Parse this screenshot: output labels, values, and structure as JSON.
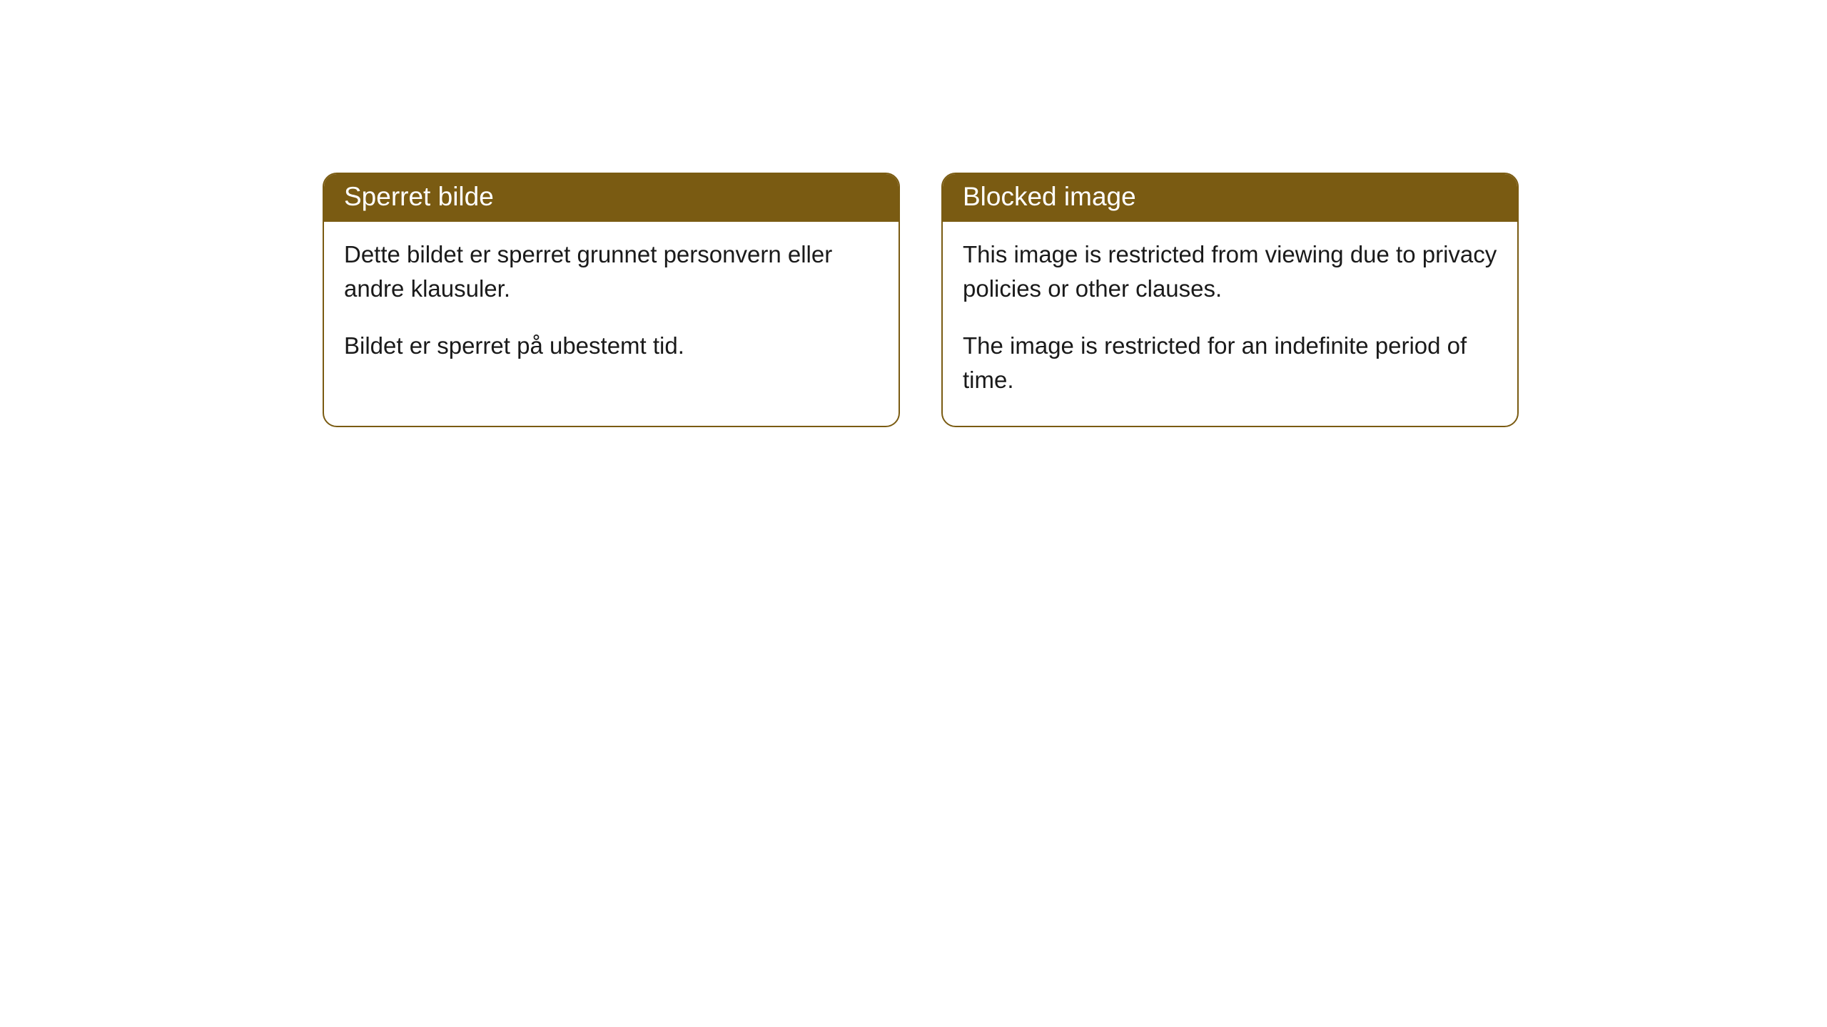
{
  "cards": [
    {
      "title": "Sperret bilde",
      "paragraph1": "Dette bildet er sperret grunnet personvern eller andre klausuler.",
      "paragraph2": "Bildet er sperret på ubestemt tid."
    },
    {
      "title": "Blocked image",
      "paragraph1": "This image is restricted from viewing due to privacy policies or other clauses.",
      "paragraph2": "The image is restricted for an indefinite period of time."
    }
  ],
  "style": {
    "header_bg": "#7a5b12",
    "header_text_color": "#ffffff",
    "border_color": "#7a5b12",
    "body_text_color": "#1a1a1a",
    "background_color": "#ffffff",
    "border_radius": 20,
    "header_fontsize": 37,
    "body_fontsize": 33
  }
}
